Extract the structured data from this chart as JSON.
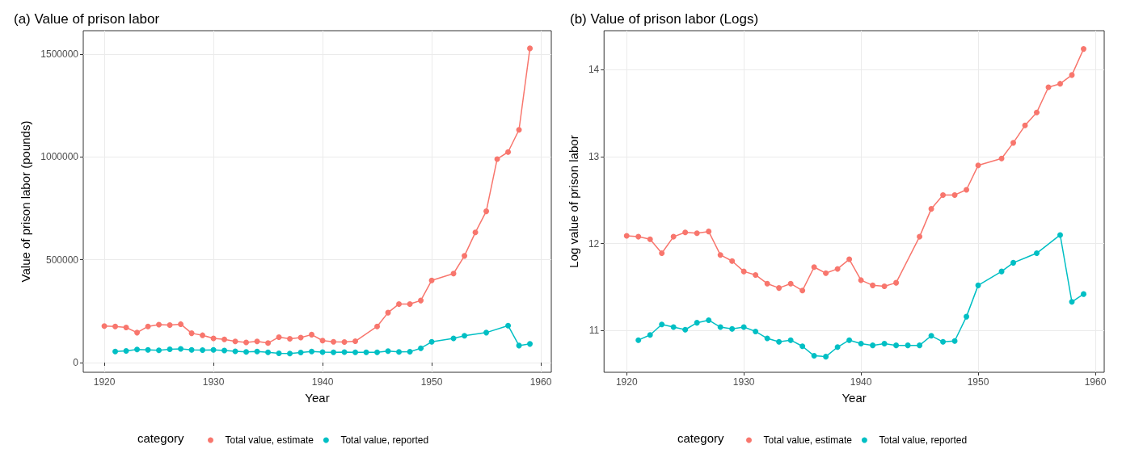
{
  "chart_data": [
    {
      "type": "line",
      "title": "(a) Value of prison labor",
      "xlabel": "Year",
      "ylabel": "Value of prison labor (pounds)",
      "legend_title": "category",
      "legend": "bottom",
      "grid": true,
      "marker": "circle",
      "line_style": "solid",
      "xlim": [
        1918.07,
        1960.96
      ],
      "xticks": [
        1920,
        1930,
        1940,
        1950,
        1960
      ],
      "ylim": [
        -47000,
        1614000
      ],
      "yticks": [
        0,
        500000,
        1000000,
        1500000
      ],
      "series": [
        {
          "name": "Total value, estimate",
          "color": "#f8766d",
          "x": [
            1920,
            1921,
            1922,
            1923,
            1924,
            1925,
            1926,
            1927,
            1928,
            1929,
            1930,
            1931,
            1932,
            1933,
            1934,
            1935,
            1936,
            1937,
            1938,
            1939,
            1940,
            1941,
            1942,
            1943,
            1945,
            1946,
            1947,
            1948,
            1949,
            1950,
            1952,
            1953,
            1954,
            1955,
            1956,
            1957,
            1958,
            1959
          ],
          "values": [
            178000,
            176000,
            171000,
            146000,
            176000,
            185000,
            183000,
            187000,
            143000,
            133000,
            118000,
            113000,
            103000,
            98000,
            103000,
            95000,
            124000,
            116000,
            122000,
            136000,
            107000,
            101000,
            100000,
            104000,
            176000,
            243000,
            285000,
            285000,
            302000,
            400000,
            433000,
            519000,
            633000,
            736000,
            990000,
            1024000,
            1132000,
            1528000
          ]
        },
        {
          "name": "Total value, reported",
          "color": "#00bfc4",
          "x": [
            1921,
            1922,
            1923,
            1924,
            1925,
            1926,
            1927,
            1928,
            1929,
            1930,
            1931,
            1932,
            1933,
            1934,
            1935,
            1936,
            1937,
            1938,
            1939,
            1940,
            1941,
            1942,
            1943,
            1944,
            1945,
            1946,
            1947,
            1948,
            1949,
            1950,
            1952,
            1953,
            1955,
            1957,
            1958,
            1959
          ],
          "values": [
            54000,
            57000,
            64000,
            62000,
            60000,
            65000,
            67000,
            62000,
            61000,
            62000,
            59000,
            55000,
            52000,
            54000,
            50000,
            45000,
            44000,
            49000,
            54000,
            51000,
            50000,
            51000,
            50000,
            50000,
            50000,
            56000,
            52000,
            53000,
            70000,
            101000,
            118000,
            131000,
            146000,
            180000,
            83000,
            91000
          ]
        }
      ]
    },
    {
      "type": "line",
      "title": "(b) Value of prison labor (Logs)",
      "xlabel": "Year",
      "ylabel": "Log value of prison labor",
      "legend_title": "category",
      "legend": "bottom",
      "grid": true,
      "marker": "circle",
      "line_style": "solid",
      "xlim": [
        1918.07,
        1960.76
      ],
      "xticks": [
        1920,
        1930,
        1940,
        1950,
        1960
      ],
      "ylim": [
        10.52,
        14.45
      ],
      "yticks": [
        11,
        12,
        13,
        14
      ],
      "series": [
        {
          "name": "Total value, estimate",
          "color": "#f8766d",
          "x": [
            1920,
            1921,
            1922,
            1923,
            1924,
            1925,
            1926,
            1927,
            1928,
            1929,
            1930,
            1931,
            1932,
            1933,
            1934,
            1935,
            1936,
            1937,
            1938,
            1939,
            1940,
            1941,
            1942,
            1943,
            1945,
            1946,
            1947,
            1948,
            1949,
            1950,
            1952,
            1953,
            1954,
            1955,
            1956,
            1957,
            1958,
            1959
          ],
          "values": [
            12.09,
            12.08,
            12.05,
            11.89,
            12.08,
            12.13,
            12.12,
            12.14,
            11.87,
            11.8,
            11.68,
            11.64,
            11.54,
            11.49,
            11.54,
            11.46,
            11.73,
            11.66,
            11.71,
            11.82,
            11.58,
            11.52,
            11.51,
            11.55,
            12.08,
            12.4,
            12.56,
            12.56,
            12.62,
            12.9,
            12.98,
            13.16,
            13.36,
            13.51,
            13.8,
            13.84,
            13.94,
            14.24
          ]
        },
        {
          "name": "Total value, reported",
          "color": "#00bfc4",
          "x": [
            1921,
            1922,
            1923,
            1924,
            1925,
            1926,
            1927,
            1928,
            1929,
            1930,
            1931,
            1932,
            1933,
            1934,
            1935,
            1936,
            1937,
            1938,
            1939,
            1940,
            1941,
            1942,
            1943,
            1944,
            1945,
            1946,
            1947,
            1948,
            1949,
            1950,
            1952,
            1953,
            1955,
            1957,
            1958,
            1959
          ],
          "values": [
            10.89,
            10.95,
            11.07,
            11.04,
            11.01,
            11.09,
            11.12,
            11.04,
            11.02,
            11.04,
            10.99,
            10.91,
            10.87,
            10.89,
            10.82,
            10.71,
            10.7,
            10.81,
            10.89,
            10.85,
            10.83,
            10.85,
            10.83,
            10.83,
            10.83,
            10.94,
            10.87,
            10.88,
            11.16,
            11.52,
            11.68,
            11.78,
            11.89,
            12.1,
            11.33,
            11.42
          ]
        }
      ]
    }
  ]
}
